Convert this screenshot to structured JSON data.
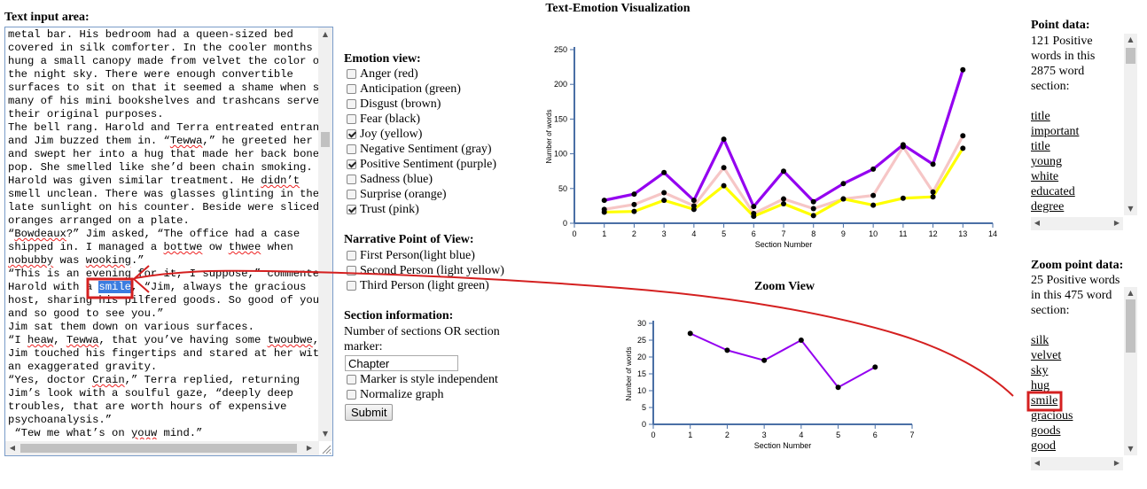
{
  "textarea": {
    "label": "Text input area:",
    "lines": [
      "metal bar. His bedroom had a queen-sized bed",
      "covered in silk comforter. In the cooler months he",
      "hung a small canopy made from velvet the color of",
      "the night sky. There were enough convertible",
      "surfaces to sit on that it seemed a shame when so",
      "many of his mini bookshelves and trashcans served",
      "their original purposes.",
      "The bell rang. Harold and Terra entreated entrance",
      "and Jim buzzed them in. “Tewwa,” he greeted her",
      "and swept her into a hug that made her back bones",
      "pop. She smelled like she’d been chain smoking.",
      "Harold was given similar treatment. He didn’t",
      "smell unclean. There was glasses glinting in the",
      "late sunlight on his counter. Beside were sliced",
      "oranges arranged on a plate.",
      "“Bowdeaux?” Jim asked, “The office had a case",
      "shipped in. I managed a bottwe ow thwee when",
      "nobubby was wooking.”",
      "“This is an evening for it, I suppose,” commented",
      "Harold with a smile, “Jim, always the gracious",
      "host, sharing his pilfered goods. So good of you,",
      "and so good to see you.”",
      "Jim sat them down on various surfaces.",
      "“I heaw, Tewwa, that you’ve having some twoubwe,”",
      "Jim touched his fingertips and stared at her with",
      "an exaggerated gravity.",
      "“Yes, doctor Crain,” Terra replied, returning",
      "Jim’s look with a soulful gaze, “deeply deep",
      "troubles, that are worth hours of expensive",
      "psychoanalysis.”",
      " “Tew me what’s on youw mind.”"
    ],
    "highlight_word": "smile"
  },
  "emotion_view": {
    "title": "Emotion view:",
    "options": [
      {
        "label": "Anger (red)",
        "checked": false
      },
      {
        "label": "Anticipation (green)",
        "checked": false
      },
      {
        "label": "Disgust (brown)",
        "checked": false
      },
      {
        "label": "Fear (black)",
        "checked": false
      },
      {
        "label": "Joy (yellow)",
        "checked": true
      },
      {
        "label": "Negative Sentiment (gray)",
        "checked": false
      },
      {
        "label": "Positive Sentiment (purple)",
        "checked": true
      },
      {
        "label": "Sadness (blue)",
        "checked": false
      },
      {
        "label": "Surprise (orange)",
        "checked": false
      },
      {
        "label": "Trust (pink)",
        "checked": true
      }
    ]
  },
  "narrative": {
    "title": "Narrative Point of View:",
    "options": [
      {
        "label": "First Person(light blue)",
        "checked": false
      },
      {
        "label": "Second Person (light yellow)",
        "checked": false
      },
      {
        "label": "Third Person (light green)",
        "checked": false
      }
    ]
  },
  "section_info": {
    "title": "Section information:",
    "desc1": "Number of sections OR section",
    "desc2": "marker:",
    "marker_value": "Chapter",
    "style_independent": "Marker is style independent",
    "normalize": "Normalize graph",
    "submit": "Submit"
  },
  "point_data": {
    "title": "Point data:",
    "summary": [
      "121 Positive",
      "words in this",
      "2875 word",
      "section:"
    ],
    "words": [
      "title",
      "important",
      "title",
      "young",
      "white",
      "educated",
      "degree"
    ]
  },
  "zoom_point_data": {
    "title": "Zoom point data:",
    "summary": [
      "25 Positive words",
      "in this 475 word",
      "section:"
    ],
    "words": [
      "silk",
      "velvet",
      "sky",
      "hug",
      "smile",
      "gracious",
      "goods",
      "good"
    ],
    "highlighted_word": "smile"
  },
  "colors": {
    "positive": "#9400f0",
    "joy": "#ffff00",
    "trust": "#f6c6c6",
    "annotation": "#d42020",
    "axis": "#4a6fa5"
  },
  "chart_data": [
    {
      "type": "line",
      "title": "Text-Emotion Visualization",
      "xlabel": "Section Number",
      "ylabel": "Number of words",
      "xlim": [
        0,
        14
      ],
      "ylim": [
        0,
        250
      ],
      "xticks": [
        0,
        1,
        2,
        3,
        4,
        5,
        6,
        7,
        8,
        9,
        10,
        11,
        12,
        13,
        14
      ],
      "yticks": [
        0,
        50,
        100,
        150,
        200,
        250
      ],
      "x": [
        1,
        2,
        3,
        4,
        5,
        6,
        7,
        8,
        9,
        10,
        11,
        12,
        13
      ],
      "series": [
        {
          "name": "Positive Sentiment (purple)",
          "color": "#9400f0",
          "values": [
            33,
            42,
            73,
            33,
            121,
            24,
            75,
            31,
            57,
            78,
            113,
            85,
            221
          ]
        },
        {
          "name": "Trust (pink)",
          "color": "#f6c6c6",
          "values": [
            20,
            27,
            44,
            25,
            80,
            14,
            35,
            21,
            35,
            40,
            110,
            45,
            126
          ]
        },
        {
          "name": "Joy (yellow)",
          "color": "#ffff00",
          "values": [
            16,
            17,
            33,
            20,
            54,
            10,
            28,
            11,
            35,
            26,
            36,
            38,
            108
          ]
        }
      ]
    },
    {
      "type": "line",
      "title": "Zoom View",
      "xlabel": "Section Number",
      "ylabel": "Number of words",
      "xlim": [
        0,
        7
      ],
      "ylim": [
        0,
        30
      ],
      "xticks": [
        0,
        1,
        2,
        3,
        4,
        5,
        6,
        7
      ],
      "yticks": [
        0,
        5,
        10,
        15,
        20,
        25,
        30
      ],
      "x": [
        1,
        2,
        3,
        4,
        5,
        6
      ],
      "series": [
        {
          "name": "Positive Sentiment (purple)",
          "color": "#9400f0",
          "values": [
            27,
            22,
            19,
            25,
            11,
            17
          ]
        }
      ]
    }
  ]
}
